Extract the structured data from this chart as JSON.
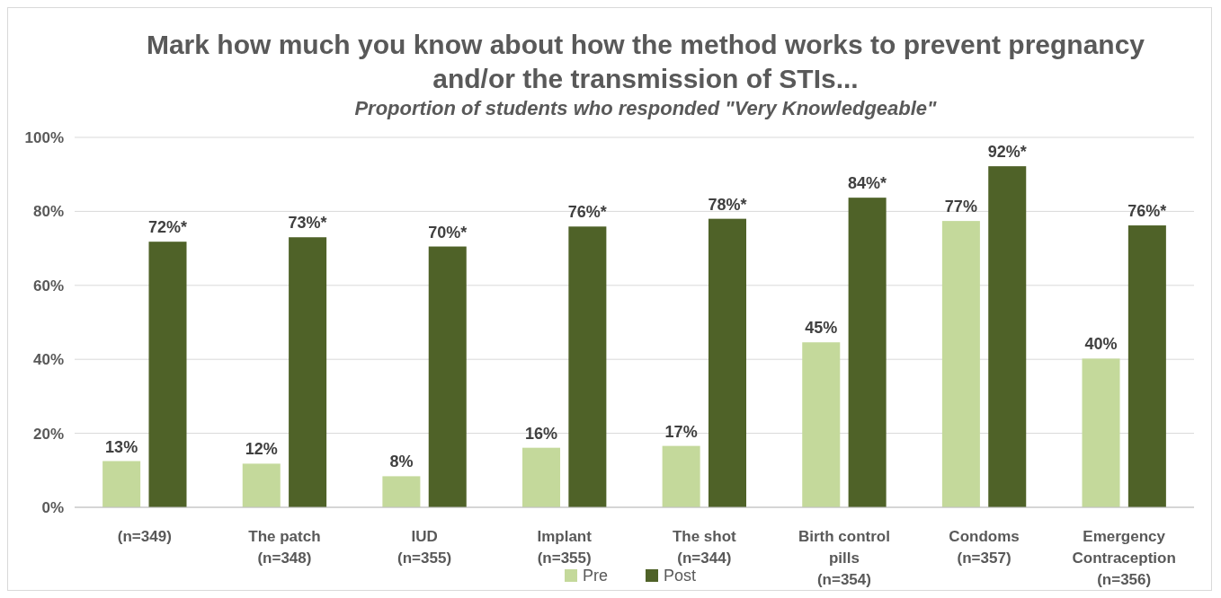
{
  "chart_data": {
    "type": "bar",
    "title": "Mark how much you know about how the method works to prevent pregnancy and/or the transmission of STIs...",
    "subtitle": "Proportion of students who responded \"Very Knowledgeable\"",
    "categories": [
      "(n=349)",
      "The patch\n(n=348)",
      "IUD\n(n=355)",
      "Implant\n(n=355)",
      "The shot\n(n=344)",
      "Birth control\npills\n(n=354)",
      "Condoms\n(n=357)",
      "Emergency\nContraception\n(n=356)"
    ],
    "series": [
      {
        "name": "Pre",
        "color": "#c4d99b",
        "values": [
          12.5,
          11.8,
          8.4,
          16.1,
          16.6,
          44.6,
          77.4,
          40.2
        ],
        "value_labels": [
          "13%",
          "12%",
          "8%",
          "16%",
          "17%",
          "45%",
          "77%",
          "40%"
        ]
      },
      {
        "name": "Post",
        "color": "#4f6228",
        "values": [
          71.8,
          73.0,
          70.5,
          75.9,
          78.0,
          83.7,
          92.2,
          76.2
        ],
        "value_labels": [
          "72%*",
          "73%*",
          "70%*",
          "76%*",
          "78%*",
          "84%*",
          "92%*",
          "76%*"
        ]
      }
    ],
    "ylim": [
      0,
      100
    ],
    "yticks": [
      {
        "value": 0,
        "label": "0%"
      },
      {
        "value": 20,
        "label": "20%"
      },
      {
        "value": 40,
        "label": "40%"
      },
      {
        "value": 60,
        "label": "60%"
      },
      {
        "value": 80,
        "label": "80%"
      },
      {
        "value": 100,
        "label": "100%"
      }
    ],
    "grid": "y",
    "legend": "bottom"
  }
}
